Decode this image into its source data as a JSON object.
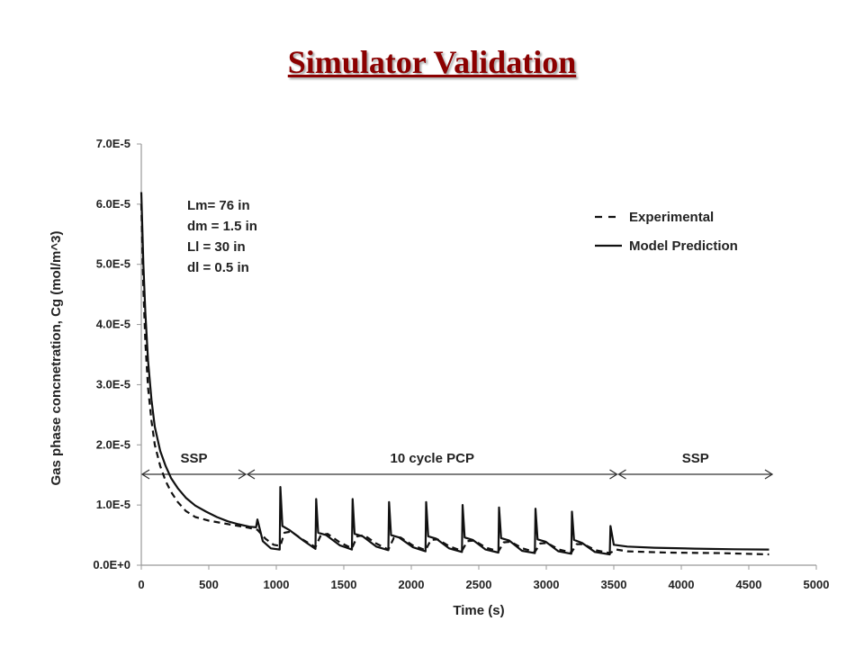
{
  "title": "Simulator Validation",
  "chart_data": {
    "type": "line",
    "xlabel": "Time (s)",
    "ylabel": "Gas phase concnetration, Cg (mol/m^3)",
    "xlim": [
      0,
      5000
    ],
    "ylim": [
      0,
      7e-05
    ],
    "x_ticks": [
      "0",
      "500",
      "1000",
      "1500",
      "2000",
      "2500",
      "3000",
      "3500",
      "4000",
      "4500",
      "5000"
    ],
    "y_ticks": [
      "0.0E+0",
      "1.0E-5",
      "2.0E-5",
      "3.0E-5",
      "4.0E-5",
      "5.0E-5",
      "6.0E-5",
      "7.0E-5"
    ],
    "grid": false,
    "legend_placement": "top-right",
    "legend": [
      {
        "label": "Experimental",
        "style": "dashed"
      },
      {
        "label": "Model Prediction",
        "style": "solid"
      }
    ],
    "annotations": [
      "Lm= 76 in",
      "dm = 1.5 in",
      "Ll = 30 in",
      "dl = 0.5 in"
    ],
    "regions": [
      {
        "label": "SSP",
        "x_start": 0,
        "x_end": 780
      },
      {
        "label": "10 cycle PCP",
        "x_start": 780,
        "x_end": 3530
      },
      {
        "label": "SSP",
        "x_start": 3530,
        "x_end": 4680
      }
    ],
    "series": [
      {
        "name": "Model Prediction",
        "style": "solid",
        "points": [
          [
            0,
            6.2e-05
          ],
          [
            15,
            5e-05
          ],
          [
            30,
            4.2e-05
          ],
          [
            50,
            3.4e-05
          ],
          [
            75,
            2.75e-05
          ],
          [
            100,
            2.3e-05
          ],
          [
            140,
            1.9e-05
          ],
          [
            180,
            1.65e-05
          ],
          [
            220,
            1.45e-05
          ],
          [
            270,
            1.28e-05
          ],
          [
            330,
            1.12e-05
          ],
          [
            400,
            9.9e-06
          ],
          [
            480,
            8.9e-06
          ],
          [
            560,
            8e-06
          ],
          [
            640,
            7.3e-06
          ],
          [
            720,
            6.8e-06
          ],
          [
            800,
            6.4e-06
          ],
          [
            850,
            6.3e-06
          ],
          [
            860,
            7.6e-06
          ],
          [
            900,
            4e-06
          ],
          [
            960,
            2.8e-06
          ],
          [
            1025,
            2.6e-06
          ],
          [
            1030,
            1.3e-05
          ],
          [
            1045,
            6.5e-06
          ],
          [
            1100,
            5.8e-06
          ],
          [
            1200,
            4.1e-06
          ],
          [
            1290,
            2.7e-06
          ],
          [
            1295,
            1.1e-05
          ],
          [
            1310,
            5.4e-06
          ],
          [
            1370,
            5e-06
          ],
          [
            1470,
            3.3e-06
          ],
          [
            1560,
            2.6e-06
          ],
          [
            1565,
            1.1e-05
          ],
          [
            1580,
            5.2e-06
          ],
          [
            1640,
            4.8e-06
          ],
          [
            1740,
            3.1e-06
          ],
          [
            1830,
            2.5e-06
          ],
          [
            1835,
            1.05e-05
          ],
          [
            1850,
            5e-06
          ],
          [
            1910,
            4.6e-06
          ],
          [
            2010,
            3e-06
          ],
          [
            2105,
            2.3e-06
          ],
          [
            2110,
            1.05e-05
          ],
          [
            2125,
            4.8e-06
          ],
          [
            2185,
            4.4e-06
          ],
          [
            2280,
            2.8e-06
          ],
          [
            2375,
            2.2e-06
          ],
          [
            2380,
            1e-05
          ],
          [
            2395,
            4.6e-06
          ],
          [
            2455,
            4.2e-06
          ],
          [
            2550,
            2.6e-06
          ],
          [
            2645,
            2.1e-06
          ],
          [
            2650,
            9.6e-06
          ],
          [
            2665,
            4.5e-06
          ],
          [
            2725,
            4.1e-06
          ],
          [
            2820,
            2.4e-06
          ],
          [
            2915,
            2e-06
          ],
          [
            2920,
            9.4e-06
          ],
          [
            2935,
            4.3e-06
          ],
          [
            2995,
            3.9e-06
          ],
          [
            3090,
            2.3e-06
          ],
          [
            3185,
            1.9e-06
          ],
          [
            3190,
            8.9e-06
          ],
          [
            3205,
            4.2e-06
          ],
          [
            3265,
            3.7e-06
          ],
          [
            3360,
            2.2e-06
          ],
          [
            3470,
            1.8e-06
          ],
          [
            3475,
            6.5e-06
          ],
          [
            3500,
            3.4e-06
          ],
          [
            3600,
            3.1e-06
          ],
          [
            3800,
            2.9e-06
          ],
          [
            4100,
            2.75e-06
          ],
          [
            4400,
            2.65e-06
          ],
          [
            4650,
            2.6e-06
          ]
        ]
      },
      {
        "name": "Experimental",
        "style": "dashed",
        "points": [
          [
            0,
            6e-05
          ],
          [
            15,
            4.6e-05
          ],
          [
            30,
            3.7e-05
          ],
          [
            50,
            2.95e-05
          ],
          [
            75,
            2.4e-05
          ],
          [
            100,
            2e-05
          ],
          [
            140,
            1.65e-05
          ],
          [
            180,
            1.4e-05
          ],
          [
            220,
            1.22e-05
          ],
          [
            270,
            1.05e-05
          ],
          [
            330,
            9e-06
          ],
          [
            400,
            8e-06
          ],
          [
            500,
            7.4e-06
          ],
          [
            600,
            7e-06
          ],
          [
            700,
            6.6e-06
          ],
          [
            800,
            6.2e-06
          ],
          [
            860,
            5.9e-06
          ],
          [
            920,
            4.4e-06
          ],
          [
            980,
            3.4e-06
          ],
          [
            1030,
            3.2e-06
          ],
          [
            1060,
            5.4e-06
          ],
          [
            1110,
            5.6e-06
          ],
          [
            1200,
            4.2e-06
          ],
          [
            1290,
            3e-06
          ],
          [
            1330,
            5e-06
          ],
          [
            1380,
            5.2e-06
          ],
          [
            1470,
            3.8e-06
          ],
          [
            1560,
            2.8e-06
          ],
          [
            1600,
            4.8e-06
          ],
          [
            1650,
            5e-06
          ],
          [
            1740,
            3.6e-06
          ],
          [
            1830,
            2.6e-06
          ],
          [
            1870,
            4.5e-06
          ],
          [
            1920,
            4.6e-06
          ],
          [
            2010,
            3.3e-06
          ],
          [
            2105,
            2.5e-06
          ],
          [
            2145,
            4.2e-06
          ],
          [
            2195,
            4.3e-06
          ],
          [
            2285,
            3.1e-06
          ],
          [
            2375,
            2.4e-06
          ],
          [
            2415,
            4e-06
          ],
          [
            2465,
            4.1e-06
          ],
          [
            2555,
            2.9e-06
          ],
          [
            2645,
            2.3e-06
          ],
          [
            2685,
            3.8e-06
          ],
          [
            2735,
            3.9e-06
          ],
          [
            2825,
            2.8e-06
          ],
          [
            2915,
            2.2e-06
          ],
          [
            2955,
            3.6e-06
          ],
          [
            3005,
            3.7e-06
          ],
          [
            3095,
            2.6e-06
          ],
          [
            3185,
            2.1e-06
          ],
          [
            3225,
            3.5e-06
          ],
          [
            3275,
            3.5e-06
          ],
          [
            3365,
            2.5e-06
          ],
          [
            3470,
            2e-06
          ],
          [
            3520,
            2.6e-06
          ],
          [
            3600,
            2.3e-06
          ],
          [
            3900,
            2.1e-06
          ],
          [
            4300,
            2e-06
          ],
          [
            4650,
            1.8e-06
          ]
        ]
      }
    ]
  }
}
